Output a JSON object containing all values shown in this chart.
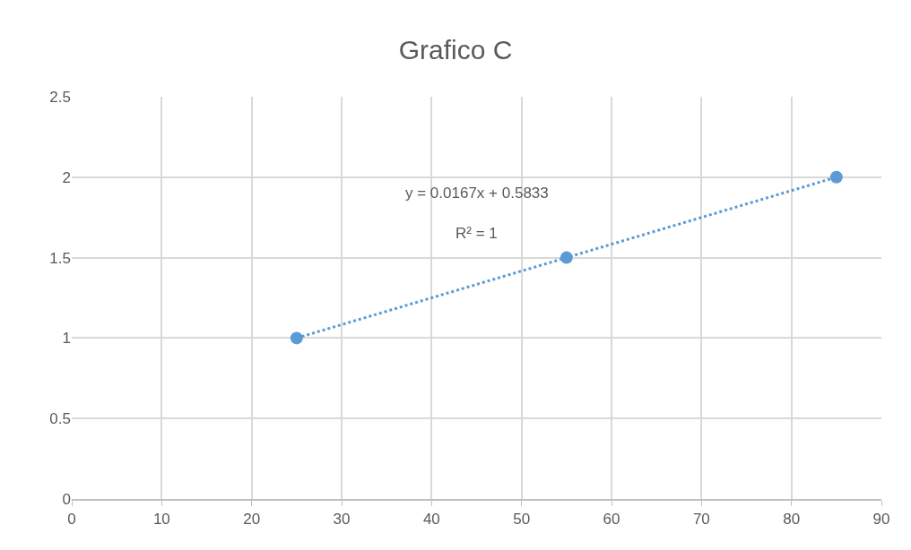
{
  "chart_data": {
    "type": "scatter",
    "title": "Grafico C",
    "series": [
      {
        "color": "#5b9bd5",
        "x": [
          25,
          55,
          85
        ],
        "values": [
          1,
          1.5,
          2
        ],
        "marker": "circle"
      },
      {
        "type": "line",
        "color": "#5b9bd5",
        "x": [
          25,
          85
        ],
        "values": [
          1,
          2
        ],
        "marker": "none",
        "line_style": "dotted"
      }
    ],
    "annotations": [
      "y = 0.0167x + 0.5833",
      "R² = 1"
    ],
    "xlim": [
      0,
      90
    ],
    "xticks": [
      0,
      10,
      20,
      30,
      40,
      50,
      60,
      70,
      80,
      90
    ],
    "ylim": [
      0,
      2.5
    ],
    "yticks": [
      0,
      0.5,
      1,
      1.5,
      2,
      2.5
    ],
    "grid": true
  }
}
